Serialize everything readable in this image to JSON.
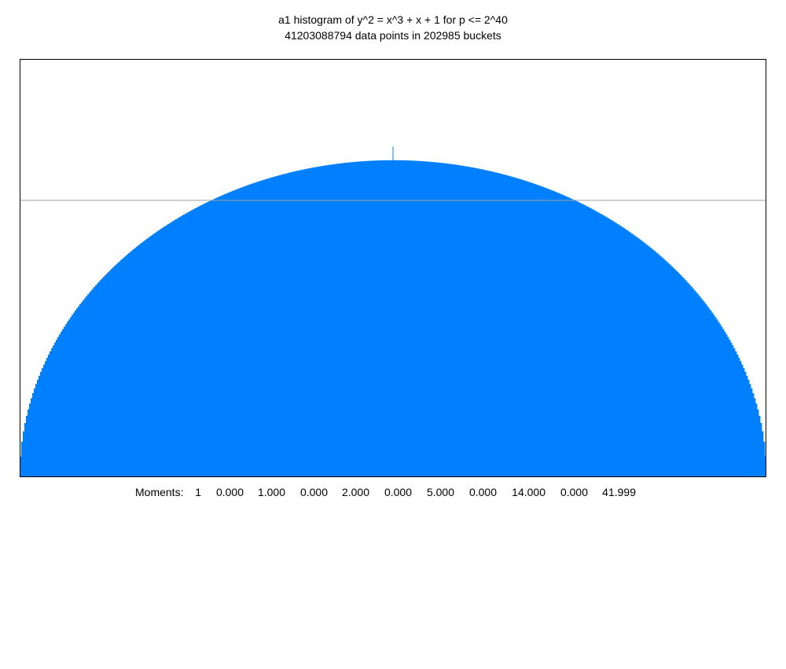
{
  "chart_data": {
    "type": "bar",
    "title": "a1 histogram of y^2 = x^3 + x + 1 for p <= 2^40",
    "subtitle": "41203088794 data points in 202985 buckets",
    "xlabel": "",
    "ylabel": "",
    "x_range": [
      -2,
      2
    ],
    "series": [
      {
        "values_description_free": true,
        "x": [
          -2.0,
          -1.9,
          -1.8,
          -1.6,
          -1.4,
          -1.2,
          -1.0,
          -0.8,
          -0.6,
          -0.4,
          -0.2,
          0.0,
          0.2,
          0.4,
          0.6,
          0.8,
          1.0,
          1.2,
          1.4,
          1.6,
          1.8,
          1.9,
          2.0
        ],
        "y": [
          0.0,
          0.099,
          0.139,
          0.191,
          0.227,
          0.255,
          0.276,
          0.291,
          0.303,
          0.311,
          0.316,
          0.318,
          0.316,
          0.311,
          0.303,
          0.291,
          0.276,
          0.255,
          0.227,
          0.191,
          0.139,
          0.099,
          0.0
        ]
      }
    ],
    "ylim": [
      0,
      0.42
    ],
    "reference_line_y": 0.278,
    "center_spike_y": 0.332,
    "grid": false,
    "legend": "none",
    "fill_color": "#0080ff",
    "reference_line_color": "#a0a0a0",
    "frame_color": "#000000"
  },
  "moments": {
    "label": "Moments:",
    "values": [
      "1",
      "0.000",
      "1.000",
      "0.000",
      "2.000",
      "0.000",
      "5.000",
      "0.000",
      "14.000",
      "0.000",
      "41.999"
    ]
  }
}
